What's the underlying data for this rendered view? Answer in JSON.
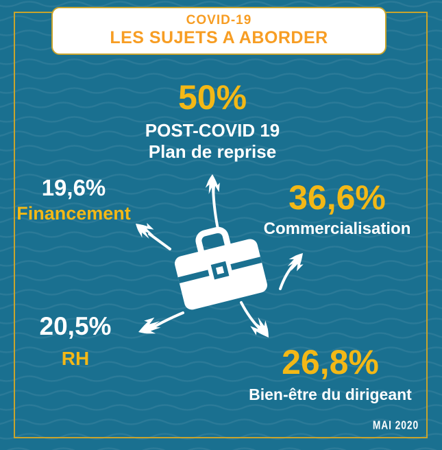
{
  "header": {
    "line1": "COVID-19",
    "line2": "LES SUJETS A ABORDER"
  },
  "topics": [
    {
      "id": "post-covid",
      "value": "50%",
      "labels": [
        "POST-COVID 19",
        "Plan de reprise"
      ]
    },
    {
      "id": "financement",
      "value": "19,6%",
      "labels": [
        "Financement"
      ]
    },
    {
      "id": "commercialisation",
      "value": "36,6%",
      "labels": [
        "Commercialisation"
      ]
    },
    {
      "id": "rh",
      "value": "20,5%",
      "labels": [
        "RH"
      ]
    },
    {
      "id": "bien-etre",
      "value": "26,8%",
      "labels": [
        "Bien-être du dirigeant"
      ]
    }
  ],
  "footer": {
    "date": "MAI 2020"
  },
  "icons": {
    "center": "briefcase-icon",
    "arrows": [
      "arrow-up-icon",
      "arrow-up-left-icon",
      "arrow-up-right-icon",
      "arrow-down-left-icon",
      "arrow-down-right-icon"
    ]
  },
  "colors": {
    "background_teal": "#1A7090",
    "frame_gold": "#C8A42C",
    "header_orange": "#F79D23",
    "accent_yellow": "#F3B816",
    "text_white": "#FFFFFF"
  },
  "chart_data": {
    "type": "radial-infographic",
    "title": "COVID-19 LES SUJETS A ABORDER",
    "categories": [
      "POST-COVID 19 Plan de reprise",
      "Commercialisation",
      "Bien-être du dirigeant",
      "RH",
      "Financement"
    ],
    "values": [
      50,
      36.6,
      26.8,
      20.5,
      19.6
    ],
    "unit": "%",
    "date": "MAI 2020"
  }
}
